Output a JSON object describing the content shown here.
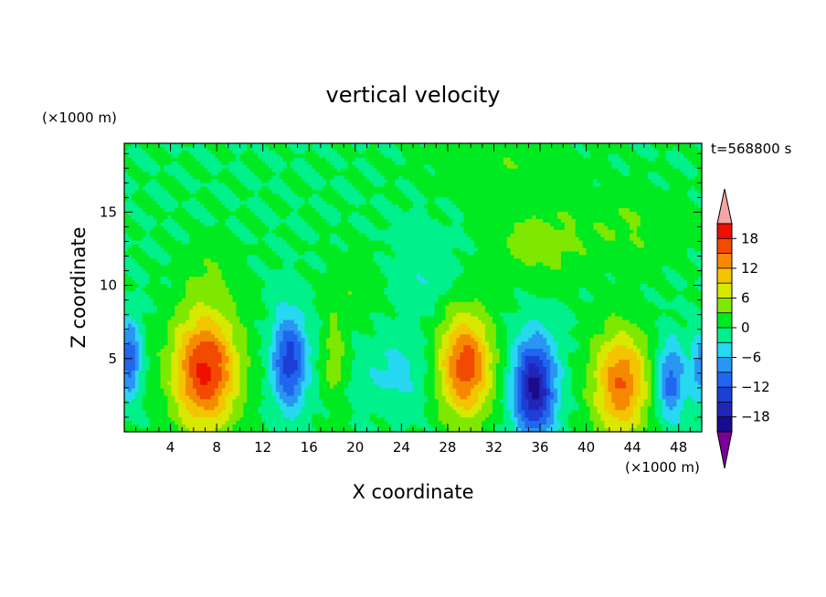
{
  "chart_data": {
    "type": "heatmap",
    "title": "vertical velocity",
    "xlabel": "X coordinate",
    "ylabel": "Z coordinate",
    "x_units": "(×1000 m)",
    "y_units": "(×1000 m)",
    "time_label": "t=568800 s",
    "x_range": [
      0,
      50
    ],
    "y_range": [
      0,
      19.7
    ],
    "x_ticks": [
      4,
      8,
      12,
      16,
      20,
      24,
      28,
      32,
      36,
      40,
      44,
      48
    ],
    "y_ticks": [
      5,
      10,
      15
    ],
    "colorbar": {
      "ticks": [
        18,
        12,
        6,
        0,
        -6,
        -12,
        -18
      ],
      "levels": [
        -21,
        -18,
        -15,
        -12,
        -9,
        -6,
        -3,
        0,
        3,
        6,
        9,
        12,
        15,
        18,
        21
      ],
      "colors": [
        "#7a0099",
        "#1a0b8c",
        "#2226b8",
        "#1c3fd6",
        "#2066ee",
        "#2a95f2",
        "#26d8f0",
        "#00f08c",
        "#00ea22",
        "#7ee800",
        "#d8e800",
        "#f5c400",
        "#f58a00",
        "#f24a00",
        "#ee1000",
        "#f4a5a5"
      ]
    },
    "features": [
      {
        "x": 7.0,
        "z": 4.2,
        "w": 2.8,
        "h": 4.0,
        "amp": 19
      },
      {
        "x": 14.3,
        "z": 4.8,
        "w": 1.5,
        "h": 3.2,
        "amp": -14
      },
      {
        "x": 18.2,
        "z": 5.0,
        "w": 1.0,
        "h": 3.0,
        "amp": 5
      },
      {
        "x": 23.5,
        "z": 4.0,
        "w": 3.0,
        "h": 2.4,
        "amp": -4
      },
      {
        "x": 29.5,
        "z": 4.5,
        "w": 2.3,
        "h": 3.6,
        "amp": 17
      },
      {
        "x": 35.5,
        "z": 3.0,
        "w": 1.8,
        "h": 3.4,
        "amp": -19
      },
      {
        "x": 43.0,
        "z": 3.3,
        "w": 2.4,
        "h": 3.6,
        "amp": 15
      },
      {
        "x": 47.3,
        "z": 3.5,
        "w": 1.3,
        "h": 2.6,
        "amp": -11
      },
      {
        "x": 0.5,
        "z": 5.0,
        "w": 0.9,
        "h": 2.5,
        "amp": -12
      },
      {
        "x": 49.8,
        "z": 4.5,
        "w": 0.7,
        "h": 2.2,
        "amp": -8
      },
      {
        "x": 7.5,
        "z": 10.5,
        "w": 2.0,
        "h": 2.0,
        "amp": 2.5
      },
      {
        "x": 36.0,
        "z": 13.0,
        "w": 4.0,
        "h": 2.5,
        "amp": 4.5
      },
      {
        "x": 44.0,
        "z": 14.0,
        "w": 4.0,
        "h": 2.5,
        "amp": 3
      },
      {
        "x": 33.0,
        "z": 18.0,
        "w": 6.0,
        "h": 2.0,
        "amp": 2.5
      },
      {
        "x": 26.0,
        "z": 11.0,
        "w": 3.0,
        "h": 3.0,
        "amp": -2.5
      },
      {
        "x": 20.0,
        "z": 10.0,
        "w": 2.5,
        "h": 2.5,
        "amp": 2.2
      }
    ]
  }
}
